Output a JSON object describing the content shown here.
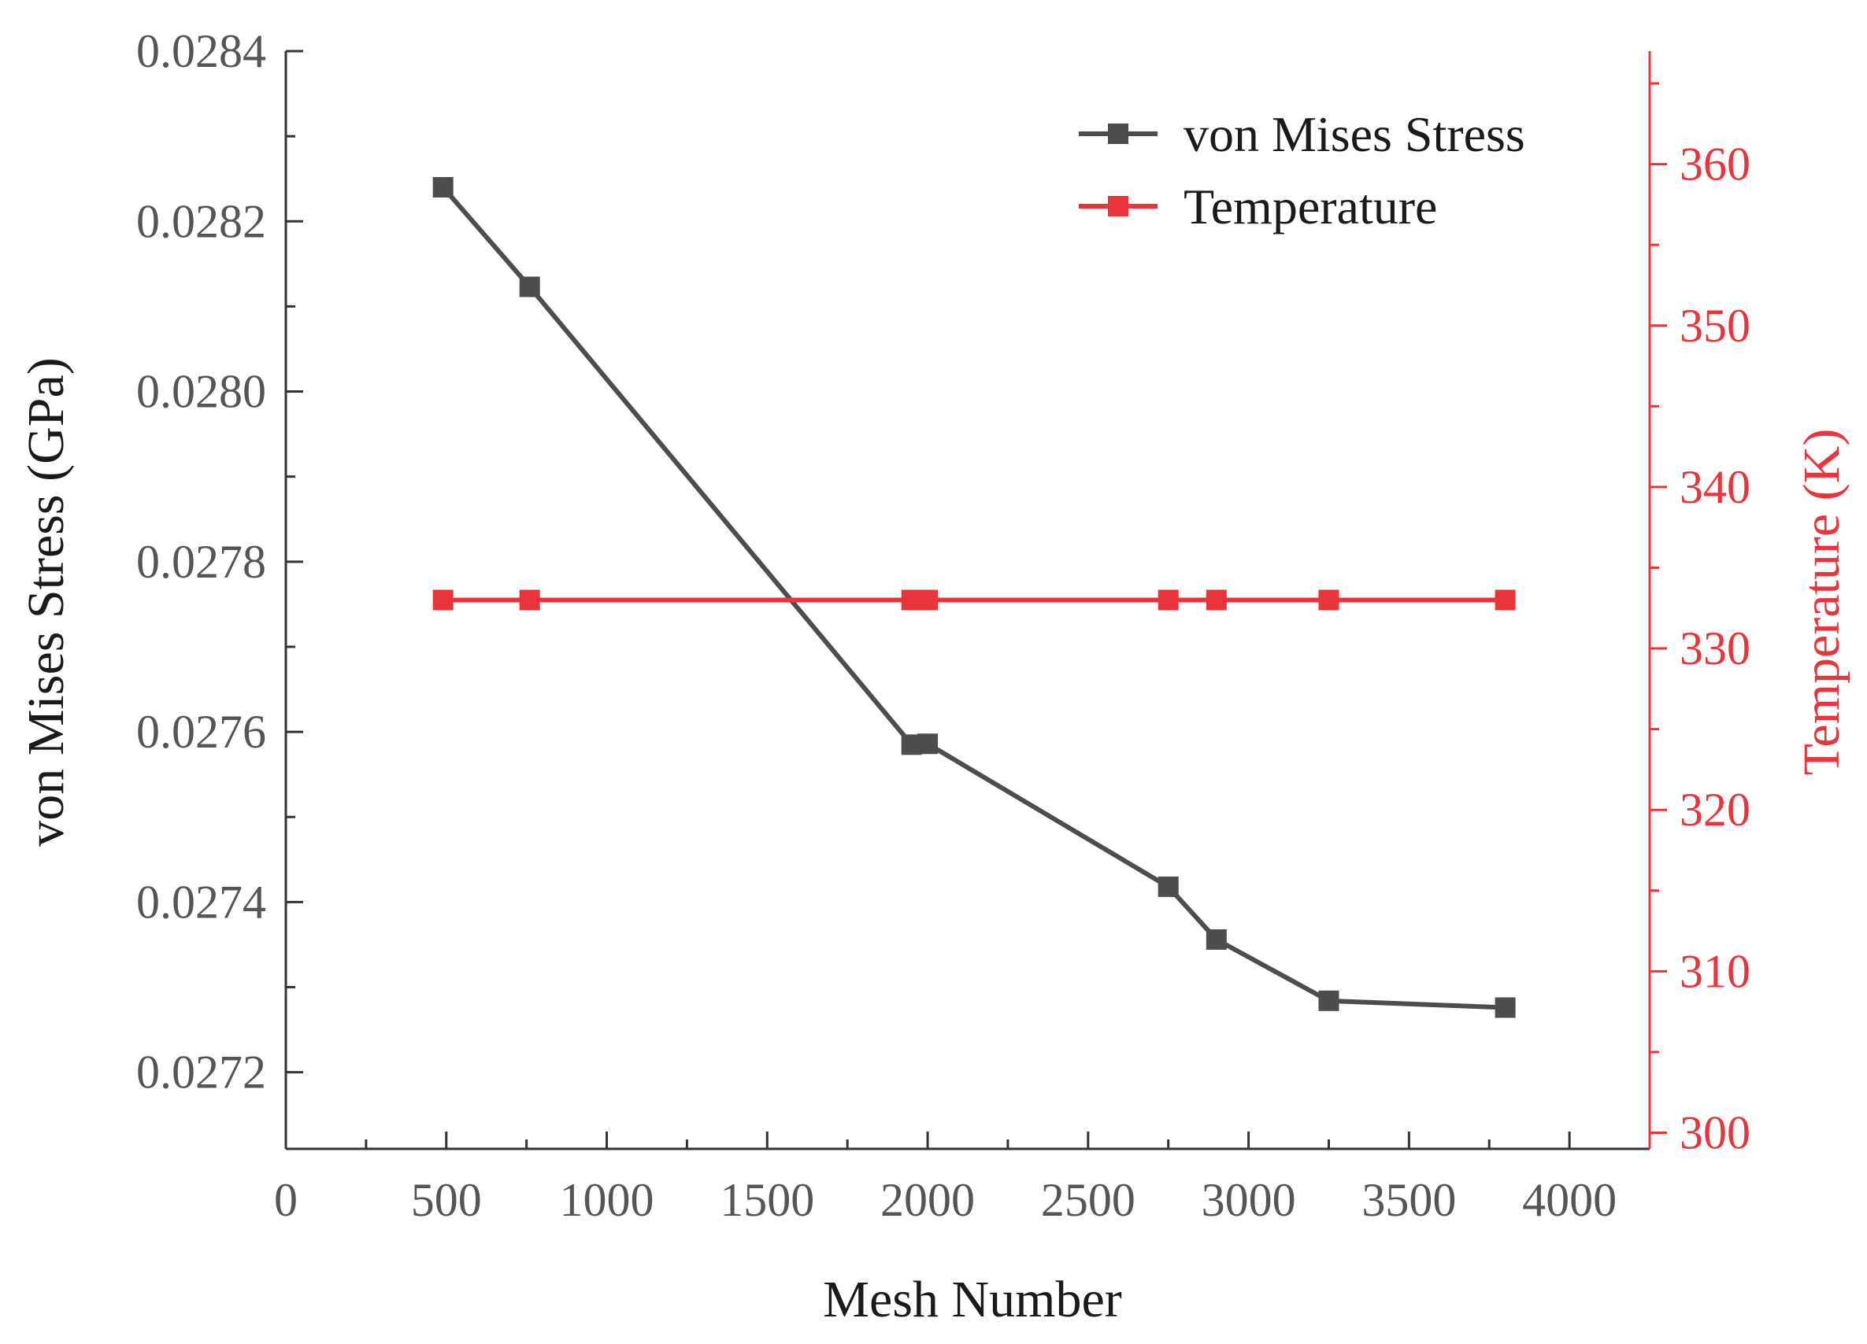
{
  "chart_data": {
    "type": "line",
    "xlabel": "Mesh Number",
    "ylabel_left": "von Mises Stress (GPa)",
    "ylabel_right": "Temperature (K)",
    "xlim": [
      0,
      4250
    ],
    "x_ticks": [
      0,
      500,
      1000,
      1500,
      2000,
      2500,
      3000,
      3500,
      4000
    ],
    "ylim_left": [
      0.02711,
      0.0284
    ],
    "y_ticks_left": [
      "0.0272",
      "0.0274",
      "0.0276",
      "0.0278",
      "0.0280",
      "0.0282",
      "0.0284"
    ],
    "ylim_right": [
      299,
      367
    ],
    "y_ticks_right": [
      300,
      310,
      320,
      330,
      340,
      350,
      360
    ],
    "grid": false,
    "legend_position": "top-right",
    "series": [
      {
        "name": "von Mises Stress",
        "axis": "left",
        "color": "#4d4d4d",
        "marker": "square",
        "x": [
          490,
          760,
          1950,
          2000,
          2750,
          2900,
          3250,
          3800
        ],
        "y": [
          0.02824,
          0.028123,
          0.027585,
          0.027586,
          0.027418,
          0.027356,
          0.027284,
          0.027276
        ]
      },
      {
        "name": "Temperature",
        "axis": "right",
        "color": "#e8343a",
        "marker": "square",
        "x": [
          490,
          760,
          1950,
          2000,
          2750,
          2900,
          3250,
          3800
        ],
        "y": [
          333,
          333,
          333,
          333,
          333,
          333,
          333,
          333
        ]
      }
    ]
  }
}
